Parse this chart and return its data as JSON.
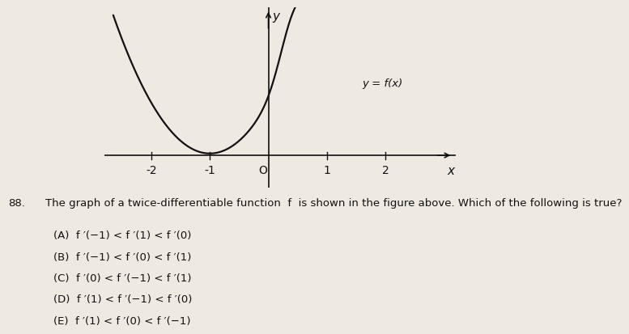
{
  "background_color": "#eeeae2",
  "graph_bg": "#eeeae2",
  "curve_color": "#111111",
  "axis_color": "#111111",
  "text_color": "#111111",
  "label_y": "y",
  "label_x": "x",
  "label_fx": "y = f(x)",
  "x_ticks": [
    -2,
    -1,
    1,
    2
  ],
  "origin_label": "O",
  "question_number": "88.",
  "question_text": "The graph of a twice-differentiable function  f  is shown in the figure above. Which of the following is true?",
  "options": [
    "(A)  f ′(−1) < f ′(1) < f ′(0)",
    "(B)  f ′(−1) < f ′(0) < f ′(1)",
    "(C)  f ′(0) < f ′(−1) < f ′(1)",
    "(D)  f ′(1) < f ′(−1) < f ′(0)",
    "(E)  f ′(1) < f ′(0) < f ′(−1)"
  ],
  "graph_xlim": [
    -2.8,
    3.2
  ],
  "graph_ylim": [
    -0.35,
    1.6
  ],
  "x_ticks_vals": [
    -2,
    -1,
    1,
    2
  ]
}
